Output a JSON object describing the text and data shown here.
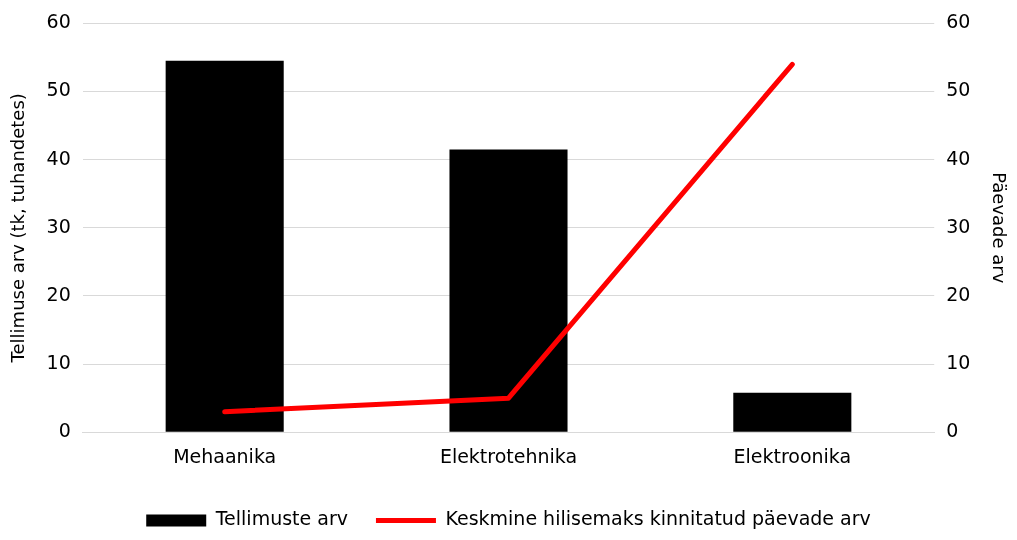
{
  "chart_data": {
    "type": "bar",
    "categories": [
      "Mehaanika",
      "Elektrotehnika",
      "Elektroonika"
    ],
    "series": [
      {
        "name": "Tellimuste arv",
        "color": "#000000",
        "values": [
          54.5,
          41.5,
          5.8
        ]
      },
      {
        "name": "Keskmine hilisemaks kinnitatud päevade arv",
        "type": "line",
        "axis": "y2",
        "color": "#ff0000",
        "values": [
          3,
          5,
          54
        ]
      }
    ],
    "ylabel": "Tellimuse arv (tk, tuhandetes)",
    "y2label": "Päevade arv",
    "ylim": [
      0,
      60
    ],
    "yticks": [
      0,
      10,
      20,
      30,
      40,
      50,
      60
    ],
    "y2lim": [
      0,
      60
    ],
    "y2ticks": [
      0,
      10,
      20,
      30,
      40,
      50,
      60
    ],
    "grid": "y",
    "legend": "bottom",
    "marker": "none"
  }
}
